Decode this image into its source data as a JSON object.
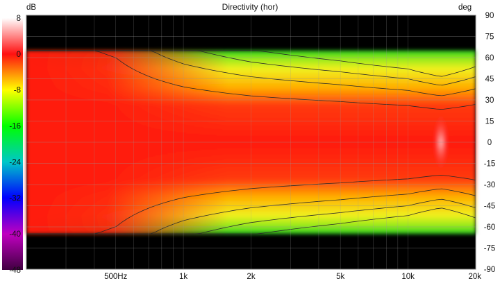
{
  "chart_data": {
    "type": "heatmap",
    "title": "Directivity (hor)",
    "colorbar_unit": "dB",
    "colorbar_ticks": [
      "8",
      "0",
      "-8",
      "-16",
      "-24",
      "-32",
      "-40",
      "-48"
    ],
    "colorbar_range": [
      -48,
      8
    ],
    "colorbar_colors": [
      "#ffffff",
      "#ff1010",
      "#ffff00",
      "#00ff00",
      "#00c8c8",
      "#0000ff",
      "#c000c0",
      "#400040"
    ],
    "y_unit": "deg",
    "y_ticks": [
      "90",
      "75",
      "60",
      "45",
      "30",
      "15",
      "0",
      "-15",
      "-30",
      "-45",
      "-60",
      "-75",
      "-90"
    ],
    "y_range": [
      -90,
      90
    ],
    "x_ticks": [
      "500Hz",
      "1k",
      "2k",
      "5k",
      "10k",
      "20k"
    ],
    "x_tick_values": [
      500,
      1000,
      2000,
      5000,
      10000,
      20000
    ],
    "x_range": [
      200,
      20000
    ],
    "x_scale": "log",
    "measured_angle_range": [
      -65,
      65
    ],
    "contour_step_db": 3,
    "beamwidth_db_at_60deg": [
      {
        "freq": 200,
        "db": -1
      },
      {
        "freq": 500,
        "db": -3
      },
      {
        "freq": 1000,
        "db": -7
      },
      {
        "freq": 2000,
        "db": -10
      },
      {
        "freq": 5000,
        "db": -13
      },
      {
        "freq": 10000,
        "db": -16
      },
      {
        "freq": 14000,
        "db": -20
      },
      {
        "freq": 20000,
        "db": -15
      }
    ]
  }
}
